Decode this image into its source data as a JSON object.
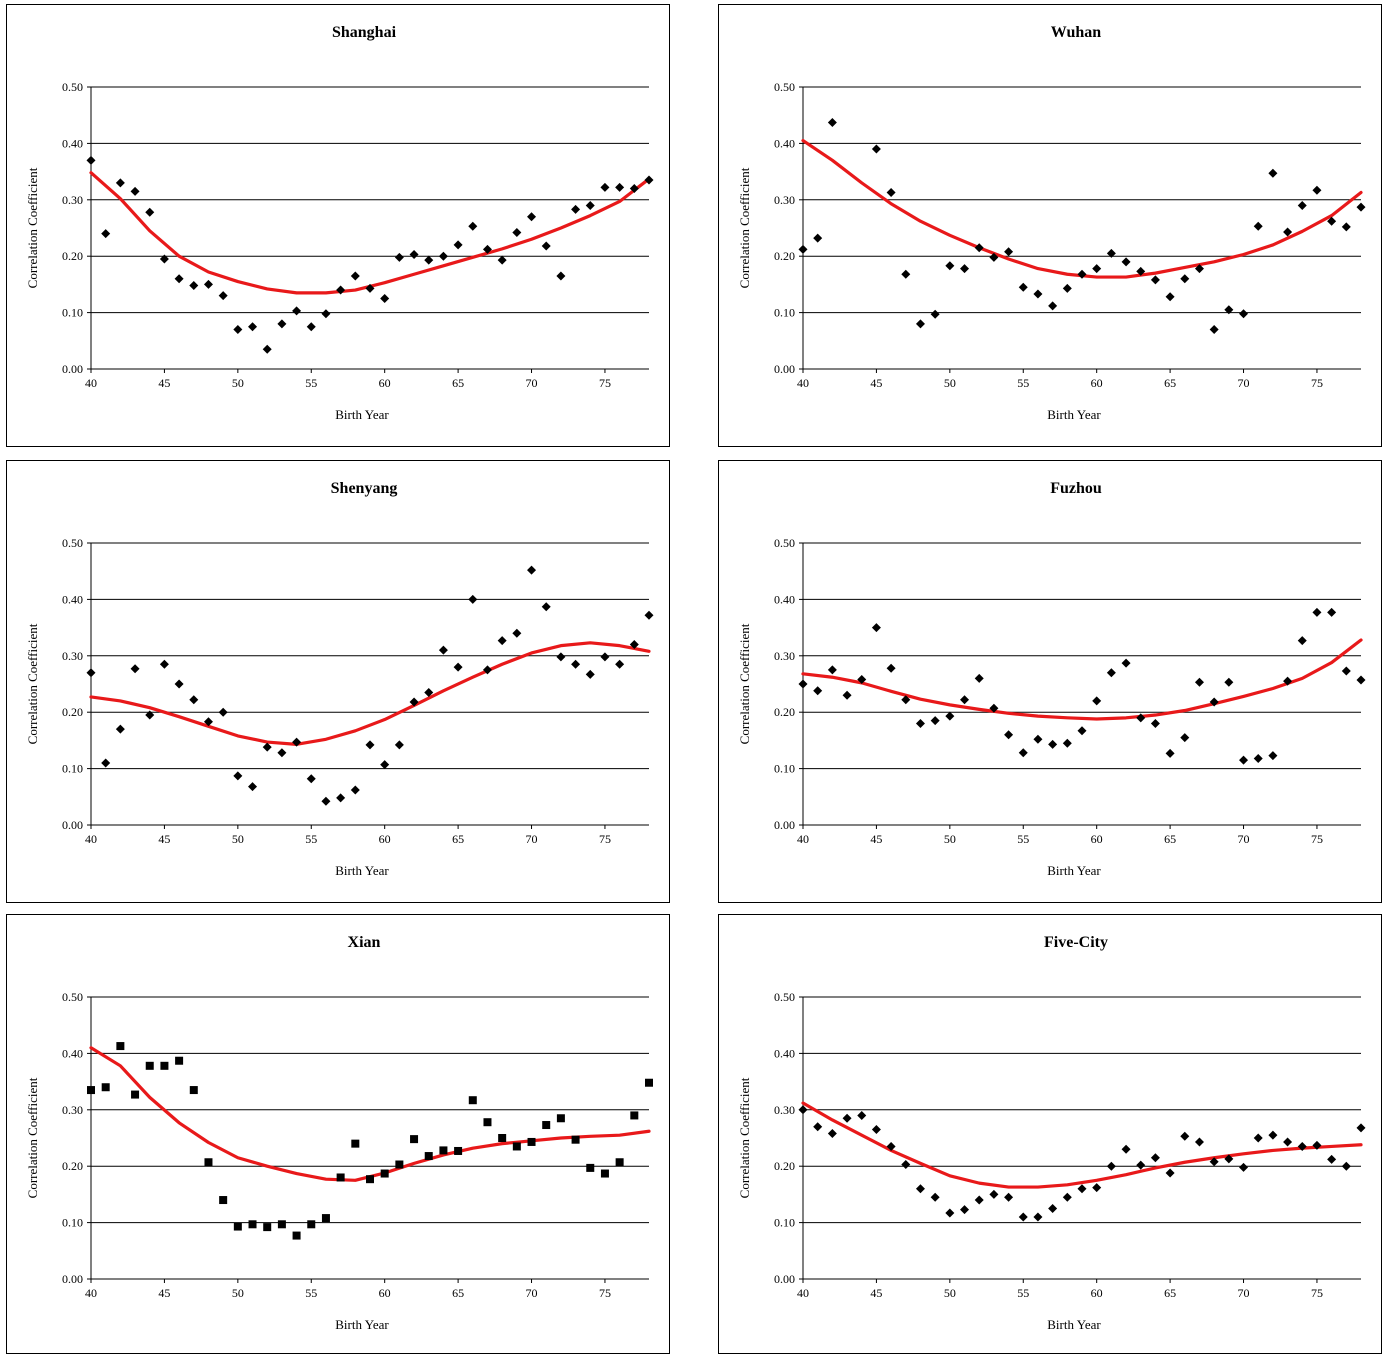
{
  "colors": {
    "trend": "#e8191a",
    "marker": "#000000",
    "grid": "#000000"
  },
  "chart_data": [
    {
      "type": "scatter",
      "title": "Shanghai",
      "xlabel": "Birth Year",
      "ylabel": "Correlation Coefficient",
      "xlim": [
        40,
        78
      ],
      "ylim": [
        0,
        0.5
      ],
      "xticks": [
        40,
        45,
        50,
        55,
        60,
        65,
        70,
        75
      ],
      "yticks": [
        "0.00",
        "0.10",
        "0.20",
        "0.30",
        "0.40",
        "0.50"
      ],
      "grid": true,
      "marker": "diamond",
      "series": [
        {
          "kind": "points",
          "x": [
            40,
            41,
            42,
            43,
            44,
            45,
            46,
            47,
            48,
            49,
            50,
            51,
            52,
            53,
            54,
            55,
            56,
            57,
            58,
            59,
            60,
            61,
            62,
            63,
            64,
            65,
            66,
            67,
            68,
            69,
            70,
            71,
            72,
            73,
            74,
            75,
            76,
            77,
            78
          ],
          "y": [
            0.37,
            0.24,
            0.33,
            0.315,
            0.278,
            0.195,
            0.16,
            0.148,
            0.15,
            0.13,
            0.07,
            0.075,
            0.035,
            0.08,
            0.103,
            0.075,
            0.098,
            0.14,
            0.165,
            0.143,
            0.125,
            0.198,
            0.203,
            0.193,
            0.2,
            0.22,
            0.253,
            0.212,
            0.193,
            0.242,
            0.27,
            0.218,
            0.165,
            0.283,
            0.29,
            0.322,
            0.322,
            0.32,
            0.335
          ]
        },
        {
          "kind": "trend",
          "x": [
            40,
            42,
            44,
            46,
            48,
            50,
            52,
            54,
            56,
            58,
            60,
            62,
            64,
            66,
            68,
            70,
            72,
            74,
            76,
            78
          ],
          "y": [
            0.348,
            0.302,
            0.245,
            0.2,
            0.172,
            0.155,
            0.142,
            0.135,
            0.135,
            0.14,
            0.153,
            0.168,
            0.183,
            0.198,
            0.213,
            0.23,
            0.25,
            0.272,
            0.297,
            0.337
          ]
        }
      ]
    },
    {
      "type": "scatter",
      "title": "Wuhan",
      "xlabel": "Birth Year",
      "ylabel": "Correlation Coefficient",
      "xlim": [
        40,
        78
      ],
      "ylim": [
        0,
        0.5
      ],
      "xticks": [
        40,
        45,
        50,
        55,
        60,
        65,
        70,
        75
      ],
      "yticks": [
        "0.00",
        "0.10",
        "0.20",
        "0.30",
        "0.40",
        "0.50"
      ],
      "grid": true,
      "marker": "diamond",
      "series": [
        {
          "kind": "points",
          "x": [
            40,
            41,
            42,
            43,
            44,
            45,
            46,
            47,
            48,
            49,
            50,
            51,
            52,
            53,
            54,
            55,
            56,
            57,
            58,
            59,
            60,
            61,
            62,
            63,
            64,
            65,
            66,
            67,
            68,
            69,
            70,
            71,
            72,
            73,
            74,
            75,
            76,
            77,
            78
          ],
          "y": [
            0.212,
            0.232,
            0.437,
            null,
            null,
            0.39,
            0.313,
            0.168,
            0.08,
            0.097,
            0.183,
            0.178,
            0.215,
            0.198,
            0.208,
            0.145,
            0.133,
            0.112,
            0.143,
            0.168,
            0.178,
            0.205,
            0.19,
            0.173,
            0.158,
            0.128,
            0.16,
            0.178,
            0.07,
            0.105,
            0.098,
            0.253,
            0.347,
            0.243,
            0.29,
            0.317,
            0.262,
            0.252,
            0.287
          ]
        },
        {
          "kind": "trend",
          "x": [
            40,
            42,
            44,
            46,
            48,
            50,
            52,
            54,
            56,
            58,
            60,
            62,
            64,
            66,
            68,
            70,
            72,
            74,
            76,
            78
          ],
          "y": [
            0.405,
            0.37,
            0.33,
            0.293,
            0.262,
            0.237,
            0.215,
            0.195,
            0.178,
            0.168,
            0.163,
            0.163,
            0.17,
            0.18,
            0.19,
            0.203,
            0.22,
            0.244,
            0.272,
            0.313
          ]
        }
      ]
    },
    {
      "type": "scatter",
      "title": "Shenyang",
      "xlabel": "Birth Year",
      "ylabel": "Correlation Coefficient",
      "xlim": [
        40,
        78
      ],
      "ylim": [
        0,
        0.5
      ],
      "xticks": [
        40,
        45,
        50,
        55,
        60,
        65,
        70,
        75
      ],
      "yticks": [
        "0.00",
        "0.10",
        "0.20",
        "0.30",
        "0.40",
        "0.50"
      ],
      "grid": true,
      "marker": "diamond",
      "series": [
        {
          "kind": "points",
          "x": [
            40,
            41,
            42,
            43,
            44,
            45,
            46,
            47,
            48,
            49,
            50,
            51,
            52,
            53,
            54,
            55,
            56,
            57,
            58,
            59,
            60,
            61,
            62,
            63,
            64,
            65,
            66,
            67,
            68,
            69,
            70,
            71,
            72,
            73,
            74,
            75,
            76,
            77,
            78
          ],
          "y": [
            0.27,
            0.11,
            0.17,
            0.277,
            0.195,
            0.285,
            0.25,
            0.222,
            0.183,
            0.2,
            0.087,
            0.068,
            0.138,
            0.128,
            0.147,
            0.082,
            0.042,
            0.048,
            0.062,
            0.142,
            0.107,
            0.142,
            0.218,
            0.235,
            0.31,
            0.28,
            0.4,
            0.275,
            0.327,
            0.34,
            0.452,
            0.387,
            0.298,
            0.285,
            0.267,
            0.298,
            0.285,
            0.32,
            0.372
          ]
        },
        {
          "kind": "trend",
          "x": [
            40,
            42,
            44,
            46,
            48,
            50,
            52,
            54,
            56,
            58,
            60,
            62,
            64,
            66,
            68,
            70,
            72,
            74,
            76,
            78
          ],
          "y": [
            0.227,
            0.22,
            0.208,
            0.192,
            0.175,
            0.158,
            0.147,
            0.143,
            0.152,
            0.167,
            0.187,
            0.212,
            0.238,
            0.262,
            0.285,
            0.305,
            0.318,
            0.323,
            0.318,
            0.308
          ]
        }
      ]
    },
    {
      "type": "scatter",
      "title": "Fuzhou",
      "xlabel": "Birth Year",
      "ylabel": "Correlation Coefficient",
      "xlim": [
        40,
        78
      ],
      "ylim": [
        0,
        0.5
      ],
      "xticks": [
        40,
        45,
        50,
        55,
        60,
        65,
        70,
        75
      ],
      "yticks": [
        "0.00",
        "0.10",
        "0.20",
        "0.30",
        "0.40",
        "0.50"
      ],
      "grid": true,
      "marker": "diamond",
      "series": [
        {
          "kind": "points",
          "x": [
            40,
            41,
            42,
            43,
            44,
            45,
            46,
            47,
            48,
            49,
            50,
            51,
            52,
            53,
            54,
            55,
            56,
            57,
            58,
            59,
            60,
            61,
            62,
            63,
            64,
            65,
            66,
            67,
            68,
            69,
            70,
            71,
            72,
            73,
            74,
            75,
            76,
            77,
            78
          ],
          "y": [
            0.25,
            0.238,
            0.275,
            0.23,
            0.258,
            0.35,
            0.278,
            0.222,
            0.18,
            0.185,
            0.193,
            0.222,
            0.26,
            0.207,
            0.16,
            0.128,
            0.152,
            0.143,
            0.145,
            0.167,
            0.22,
            0.27,
            0.287,
            0.19,
            0.18,
            0.127,
            0.155,
            0.253,
            0.218,
            0.253,
            0.115,
            0.118,
            0.123,
            0.255,
            0.327,
            0.377,
            0.377,
            0.273,
            0.257
          ]
        },
        {
          "kind": "trend",
          "x": [
            40,
            42,
            44,
            46,
            48,
            50,
            52,
            54,
            56,
            58,
            60,
            62,
            64,
            66,
            68,
            70,
            72,
            74,
            76,
            78
          ],
          "y": [
            0.268,
            0.262,
            0.252,
            0.237,
            0.223,
            0.213,
            0.205,
            0.198,
            0.193,
            0.19,
            0.188,
            0.19,
            0.195,
            0.203,
            0.215,
            0.228,
            0.242,
            0.26,
            0.288,
            0.328
          ]
        }
      ]
    },
    {
      "type": "scatter",
      "title": "Xian",
      "xlabel": "Birth Year",
      "ylabel": "Correlation Coefficient",
      "xlim": [
        40,
        78
      ],
      "ylim": [
        0,
        0.5
      ],
      "xticks": [
        40,
        45,
        50,
        55,
        60,
        65,
        70,
        75
      ],
      "yticks": [
        "0.00",
        "0.10",
        "0.20",
        "0.30",
        "0.40",
        "0.50"
      ],
      "grid": true,
      "marker": "square",
      "series": [
        {
          "kind": "points",
          "x": [
            40,
            41,
            42,
            43,
            44,
            45,
            46,
            47,
            48,
            49,
            50,
            51,
            52,
            53,
            54,
            55,
            56,
            57,
            58,
            59,
            60,
            61,
            62,
            63,
            64,
            65,
            66,
            67,
            68,
            69,
            70,
            71,
            72,
            73,
            74,
            75,
            76,
            77,
            78
          ],
          "y": [
            0.335,
            0.34,
            0.413,
            0.327,
            0.378,
            0.378,
            0.387,
            0.335,
            0.207,
            0.14,
            0.093,
            0.097,
            0.092,
            0.097,
            0.077,
            0.097,
            0.108,
            0.18,
            0.24,
            0.177,
            0.187,
            0.203,
            0.248,
            0.218,
            0.228,
            0.227,
            0.317,
            0.278,
            0.25,
            0.235,
            0.243,
            0.273,
            0.285,
            0.247,
            0.197,
            0.187,
            0.207,
            0.29,
            0.348
          ]
        },
        {
          "kind": "trend",
          "x": [
            40,
            42,
            44,
            46,
            48,
            50,
            52,
            54,
            56,
            58,
            60,
            62,
            64,
            66,
            68,
            70,
            72,
            74,
            76,
            78
          ],
          "y": [
            0.41,
            0.378,
            0.322,
            0.277,
            0.242,
            0.215,
            0.2,
            0.187,
            0.177,
            0.175,
            0.188,
            0.205,
            0.22,
            0.232,
            0.24,
            0.245,
            0.25,
            0.253,
            0.255,
            0.262
          ]
        }
      ]
    },
    {
      "type": "scatter",
      "title": "Five-City",
      "xlabel": "Birth Year",
      "ylabel": "Correlation Coefficient",
      "xlim": [
        40,
        78
      ],
      "ylim": [
        0,
        0.5
      ],
      "xticks": [
        40,
        45,
        50,
        55,
        60,
        65,
        70,
        75
      ],
      "yticks": [
        "0.00",
        "0.10",
        "0.20",
        "0.30",
        "0.40",
        "0.50"
      ],
      "grid": true,
      "marker": "diamond",
      "series": [
        {
          "kind": "points",
          "x": [
            40,
            41,
            42,
            43,
            44,
            45,
            46,
            47,
            48,
            49,
            50,
            51,
            52,
            53,
            54,
            55,
            56,
            57,
            58,
            59,
            60,
            61,
            62,
            63,
            64,
            65,
            66,
            67,
            68,
            69,
            70,
            71,
            72,
            73,
            74,
            75,
            76,
            77,
            78
          ],
          "y": [
            0.3,
            0.27,
            0.258,
            0.285,
            0.29,
            0.265,
            0.235,
            0.203,
            0.16,
            0.145,
            0.117,
            0.123,
            0.14,
            0.15,
            0.145,
            0.11,
            0.11,
            0.125,
            0.145,
            0.16,
            0.162,
            0.2,
            0.23,
            0.202,
            0.215,
            0.188,
            0.253,
            0.243,
            0.208,
            0.213,
            0.198,
            0.25,
            0.255,
            0.243,
            0.235,
            0.237,
            0.212,
            0.2,
            0.268
          ]
        },
        {
          "kind": "trend",
          "x": [
            40,
            42,
            44,
            46,
            48,
            50,
            52,
            54,
            56,
            58,
            60,
            62,
            64,
            66,
            68,
            70,
            72,
            74,
            76,
            78
          ],
          "y": [
            0.312,
            0.282,
            0.255,
            0.228,
            0.205,
            0.183,
            0.17,
            0.163,
            0.163,
            0.167,
            0.175,
            0.185,
            0.197,
            0.207,
            0.215,
            0.222,
            0.228,
            0.232,
            0.235,
            0.238
          ]
        }
      ]
    }
  ]
}
